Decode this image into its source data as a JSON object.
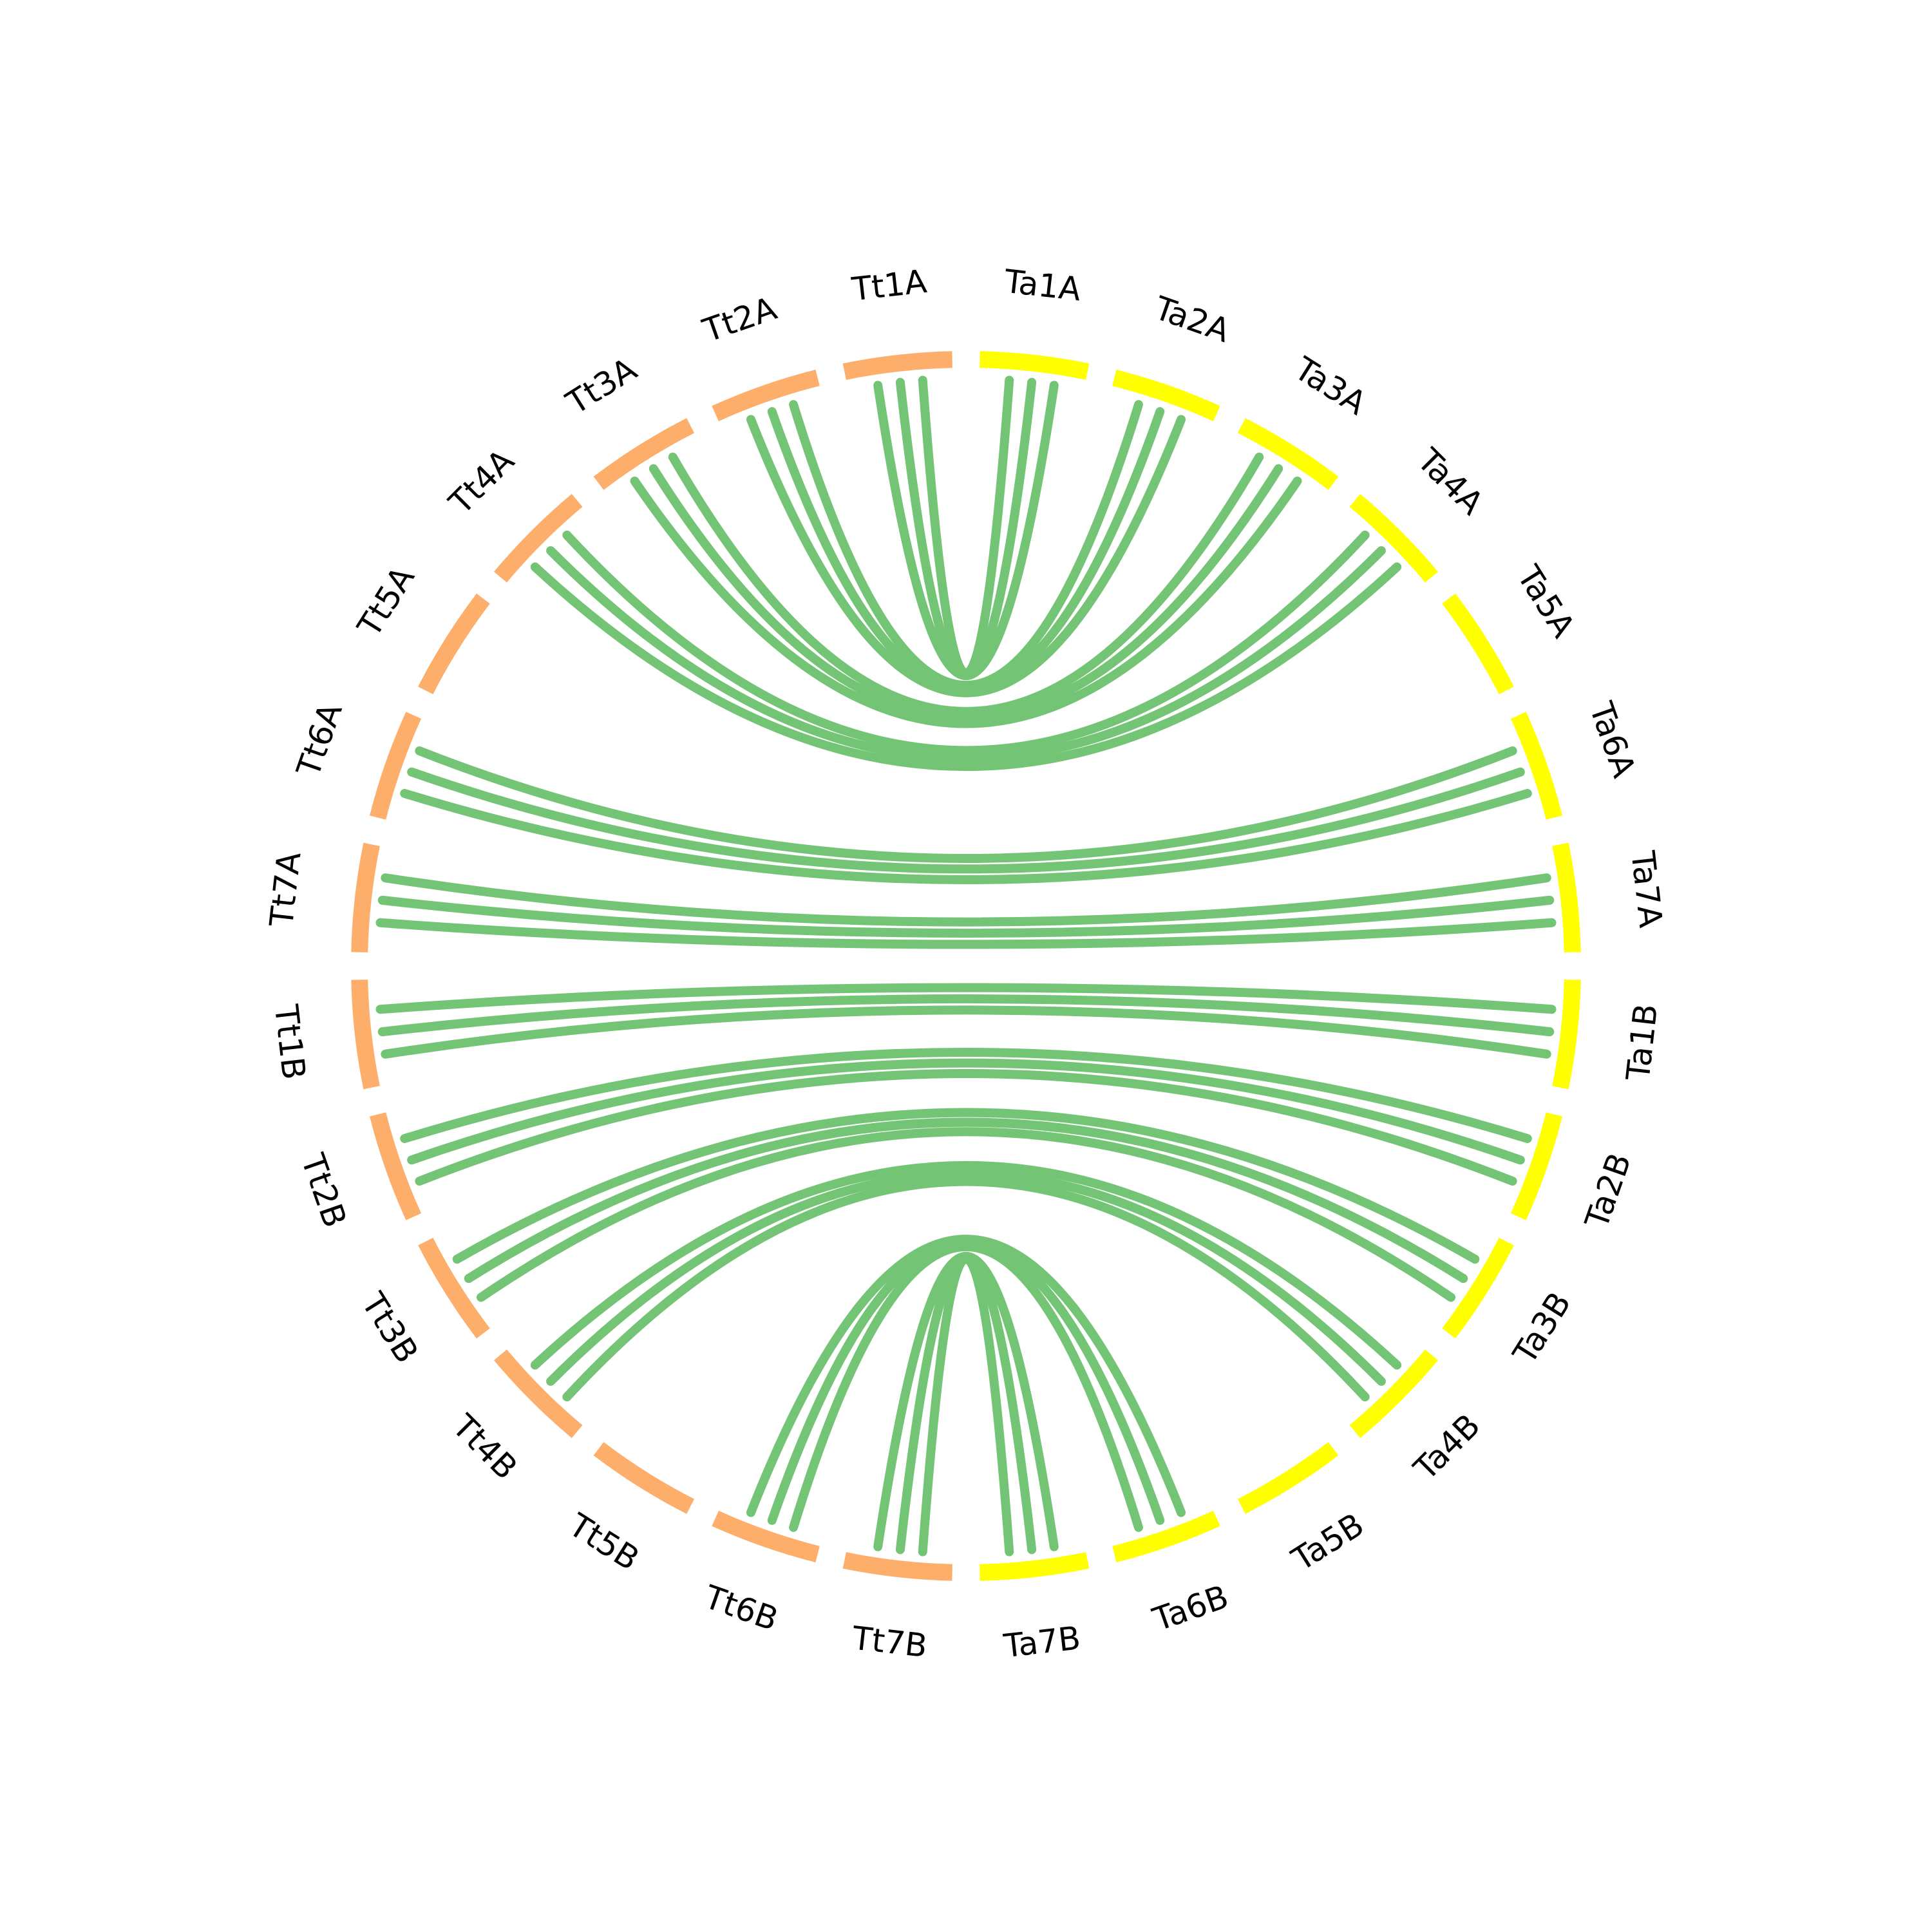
{
  "segments": [
    {
      "label": "Ta1A",
      "color": "#ffff00"
    },
    {
      "label": "Ta2A",
      "color": "#ffff00"
    },
    {
      "label": "Ta3A",
      "color": "#ffff00"
    },
    {
      "label": "Ta4A",
      "color": "#ffff00"
    },
    {
      "label": "Ta5A",
      "color": "#ffff00"
    },
    {
      "label": "Ta6A",
      "color": "#ffff00"
    },
    {
      "label": "Ta7A",
      "color": "#ffff00"
    },
    {
      "label": "Ta1B",
      "color": "#ffff00"
    },
    {
      "label": "Ta2B",
      "color": "#ffff00"
    },
    {
      "label": "Ta3B",
      "color": "#ffff00"
    },
    {
      "label": "Ta4B",
      "color": "#ffff00"
    },
    {
      "label": "Ta5B",
      "color": "#ffff00"
    },
    {
      "label": "Ta6B",
      "color": "#ffff00"
    },
    {
      "label": "Ta7B",
      "color": "#ffff00"
    },
    {
      "label": "Tt7B",
      "color": "#fdae6b"
    },
    {
      "label": "Tt6B",
      "color": "#fdae6b"
    },
    {
      "label": "Tt5B",
      "color": "#fdae6b"
    },
    {
      "label": "Tt4B",
      "color": "#fdae6b"
    },
    {
      "label": "Tt3B",
      "color": "#fdae6b"
    },
    {
      "label": "Tt2B",
      "color": "#fdae6b"
    },
    {
      "label": "Tt1B",
      "color": "#fdae6b"
    },
    {
      "label": "Tt7A",
      "color": "#fdae6b"
    },
    {
      "label": "Tt6A",
      "color": "#fdae6b"
    },
    {
      "label": "Tt5A",
      "color": "#fdae6b"
    },
    {
      "label": "Tt4A",
      "color": "#fdae6b"
    },
    {
      "label": "Tt3A",
      "color": "#fdae6b"
    },
    {
      "label": "Tt2A",
      "color": "#fdae6b"
    },
    {
      "label": "Tt1A",
      "color": "#fdae6b"
    }
  ],
  "link_color": "#74c476",
  "links": [
    [
      "Tt1A",
      "Ta1A"
    ],
    [
      "Tt2A",
      "Ta2A"
    ],
    [
      "Tt3A",
      "Ta3A"
    ],
    [
      "Tt4A",
      "Ta4A"
    ],
    [
      "Tt6A",
      "Ta6A"
    ],
    [
      "Tt7A",
      "Ta7A"
    ],
    [
      "Tt1B",
      "Ta1B"
    ],
    [
      "Tt2B",
      "Ta2B"
    ],
    [
      "Tt3B",
      "Ta3B"
    ],
    [
      "Tt4B",
      "Ta4B"
    ],
    [
      "Tt6B",
      "Ta6B"
    ],
    [
      "Tt7B",
      "Ta7B"
    ]
  ]
}
